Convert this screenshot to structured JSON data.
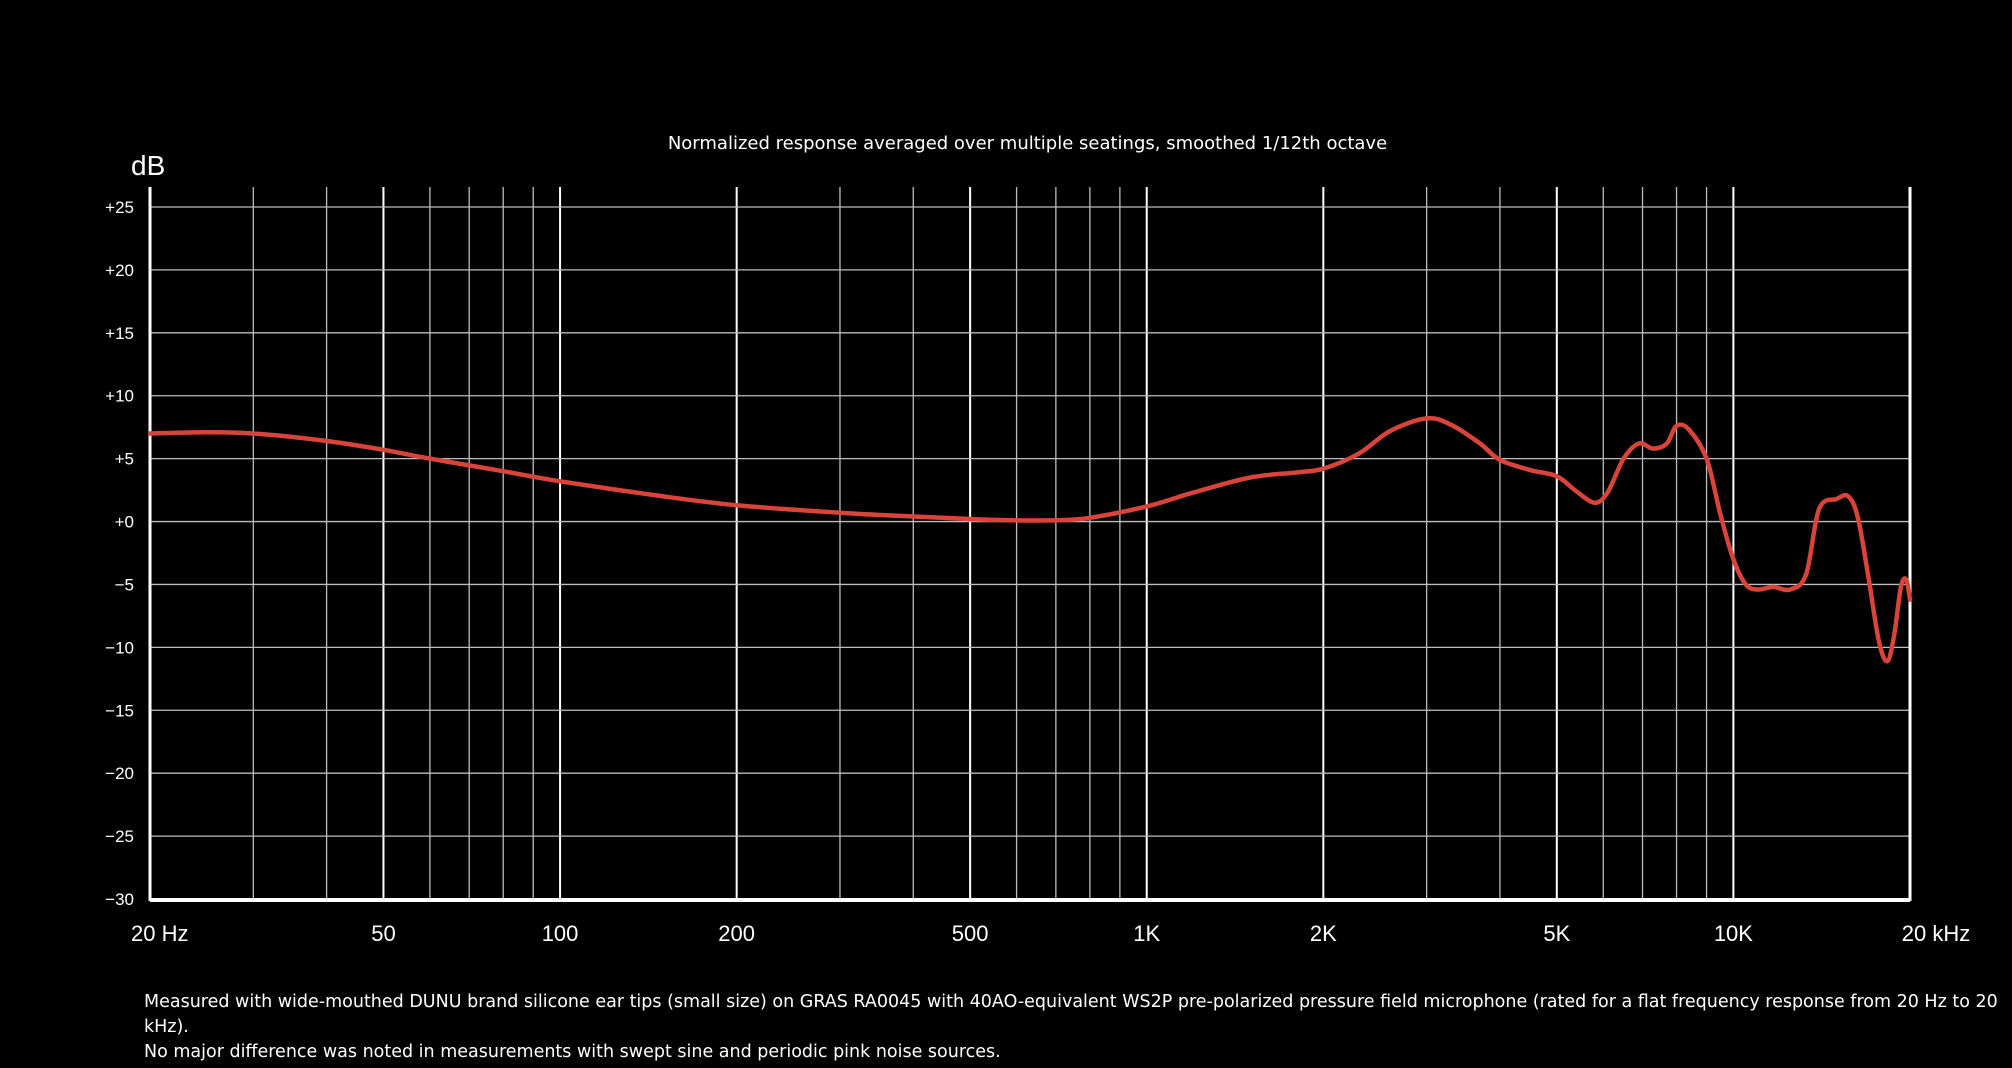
{
  "chart_data": {
    "type": "line",
    "subtitle": "Normalized response averaged over multiple seatings, smoothed 1/12th octave",
    "ylabel": "dB",
    "xscale": "log",
    "xlim": [
      20,
      20000
    ],
    "ylim": [
      -30,
      27
    ],
    "grid": true,
    "x_tick_labels": [
      {
        "value": 20,
        "label": "20 Hz"
      },
      {
        "value": 50,
        "label": "50"
      },
      {
        "value": 100,
        "label": "100"
      },
      {
        "value": 200,
        "label": "200"
      },
      {
        "value": 500,
        "label": "500"
      },
      {
        "value": 1000,
        "label": "1K"
      },
      {
        "value": 2000,
        "label": "2K"
      },
      {
        "value": 5000,
        "label": "5K"
      },
      {
        "value": 10000,
        "label": "10K"
      },
      {
        "value": 20000,
        "label": "20 kHz"
      }
    ],
    "y_tick_labels": [
      {
        "value": 25,
        "label": "+25"
      },
      {
        "value": 20,
        "label": "+20"
      },
      {
        "value": 15,
        "label": "+15"
      },
      {
        "value": 10,
        "label": "+10"
      },
      {
        "value": 5,
        "label": "+5"
      },
      {
        "value": 0,
        "label": "+0"
      },
      {
        "value": -5,
        "label": "−5"
      },
      {
        "value": -10,
        "label": "−10"
      },
      {
        "value": -15,
        "label": "−15"
      },
      {
        "value": -20,
        "label": "−20"
      },
      {
        "value": -25,
        "label": "−25"
      },
      {
        "value": -30,
        "label": "−30"
      }
    ],
    "series": [
      {
        "color": "#d9443a",
        "points": [
          [
            20,
            7.0
          ],
          [
            25,
            7.1
          ],
          [
            30,
            7.0
          ],
          [
            40,
            6.4
          ],
          [
            50,
            5.7
          ],
          [
            60,
            5.0
          ],
          [
            80,
            4.0
          ],
          [
            100,
            3.2
          ],
          [
            150,
            2.0
          ],
          [
            200,
            1.3
          ],
          [
            300,
            0.7
          ],
          [
            400,
            0.4
          ],
          [
            500,
            0.2
          ],
          [
            600,
            0.1
          ],
          [
            700,
            0.1
          ],
          [
            800,
            0.3
          ],
          [
            1000,
            1.2
          ],
          [
            1200,
            2.3
          ],
          [
            1500,
            3.5
          ],
          [
            1800,
            3.9
          ],
          [
            2000,
            4.2
          ],
          [
            2300,
            5.4
          ],
          [
            2600,
            7.2
          ],
          [
            3000,
            8.2
          ],
          [
            3300,
            7.7
          ],
          [
            3700,
            6.2
          ],
          [
            4000,
            4.9
          ],
          [
            4500,
            4.1
          ],
          [
            5000,
            3.6
          ],
          [
            5400,
            2.4
          ],
          [
            5800,
            1.5
          ],
          [
            6100,
            2.3
          ],
          [
            6500,
            5.0
          ],
          [
            6900,
            6.2
          ],
          [
            7300,
            5.8
          ],
          [
            7700,
            6.2
          ],
          [
            8000,
            7.6
          ],
          [
            8400,
            7.3
          ],
          [
            9000,
            5.0
          ],
          [
            9500,
            0.6
          ],
          [
            10000,
            -3.0
          ],
          [
            10500,
            -5.0
          ],
          [
            11000,
            -5.4
          ],
          [
            11700,
            -5.2
          ],
          [
            12500,
            -5.4
          ],
          [
            13300,
            -4.2
          ],
          [
            14000,
            1.0
          ],
          [
            15000,
            1.8
          ],
          [
            15700,
            2.0
          ],
          [
            16300,
            0.3
          ],
          [
            17000,
            -4.5
          ],
          [
            17700,
            -9.5
          ],
          [
            18300,
            -11.1
          ],
          [
            18800,
            -9.0
          ],
          [
            19300,
            -5.2
          ],
          [
            19700,
            -4.6
          ],
          [
            20000,
            -6.2
          ]
        ]
      }
    ]
  },
  "footnote": {
    "line1": "Measured with wide-mouthed DUNU brand silicone ear tips (small size) on GRAS RA0045 with 40AO-equivalent WS2P pre-polarized pressure field microphone (rated for a flat frequency response from 20 Hz to 20 kHz).",
    "line2": "No major difference was noted in measurements with swept sine and periodic pink noise sources."
  }
}
